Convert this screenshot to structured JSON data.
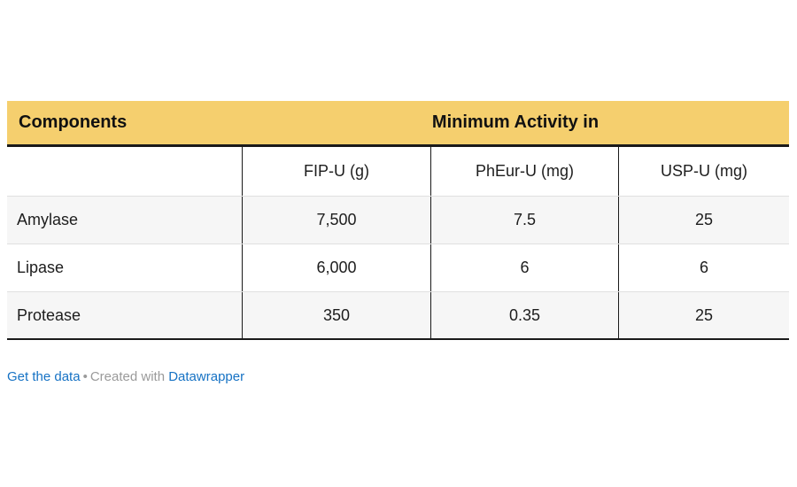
{
  "table": {
    "group_header": {
      "components": "Components",
      "activity": "Minimum Activity in"
    },
    "col_headers": {
      "c1": "",
      "c2": "FIP-U (g)",
      "c3": "PhEur-U (mg)",
      "c4": "USP-U (mg)"
    },
    "rows": [
      {
        "cells": [
          "Amylase",
          "7,500",
          "7.5",
          "25"
        ]
      },
      {
        "cells": [
          "Lipase",
          "6,000",
          "6",
          "6"
        ]
      },
      {
        "cells": [
          "Protease",
          "350",
          "0.35",
          "25"
        ]
      }
    ]
  },
  "footer": {
    "get_data_link": "Get the data",
    "separator": "•",
    "created_with": "Created with",
    "brand_link": "Datawrapper"
  },
  "colors": {
    "header_bg": "#F5CF6E",
    "alt_row_bg": "#F6F6F6",
    "border_black": "#1A1A1A",
    "separator_gray": "#E0E0E0",
    "link_blue": "#1672C4",
    "muted_gray": "#9A9A9A"
  },
  "chart_data": {
    "type": "table",
    "title": "",
    "group_headers": [
      "Components",
      "Minimum Activity in"
    ],
    "columns": [
      "Components",
      "FIP-U (g)",
      "PhEur-U (mg)",
      "USP-U (mg)"
    ],
    "rows": [
      [
        "Amylase",
        7500,
        7.5,
        25
      ],
      [
        "Lipase",
        6000,
        6,
        6
      ],
      [
        "Protease",
        350,
        0.35,
        25
      ]
    ],
    "layout_hints": {
      "header_background": "#F5CF6E",
      "striped_rows": true,
      "column_dividers": "black vertical rules",
      "attribution": "Get the data • Created with Datawrapper"
    }
  }
}
